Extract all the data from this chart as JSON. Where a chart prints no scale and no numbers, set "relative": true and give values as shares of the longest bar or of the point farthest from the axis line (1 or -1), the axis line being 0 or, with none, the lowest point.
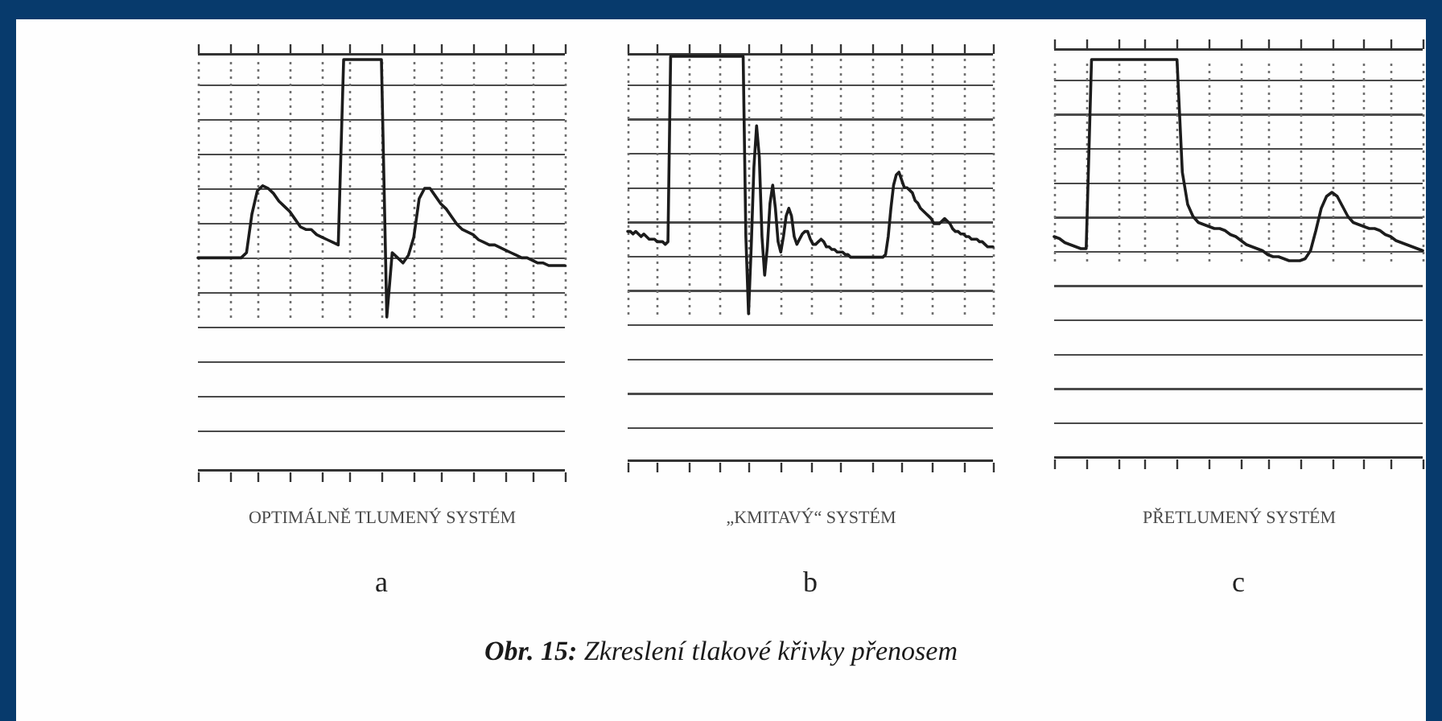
{
  "chart_data": [
    {
      "type": "line",
      "relative": true,
      "title": "a",
      "xlabel": "OPTIMÁLNĚ TLUMENÝ SYSTÉM",
      "color": "#1c1c1c",
      "grid": true,
      "categories": [
        null,
        null,
        null,
        null,
        null,
        null,
        null,
        null,
        null,
        null,
        null,
        null,
        null,
        null,
        null,
        null,
        null,
        null,
        null,
        null,
        null,
        null,
        null,
        null,
        null,
        null,
        null,
        null,
        null,
        null,
        null,
        null,
        null,
        null,
        null,
        null,
        null,
        null,
        null,
        null,
        null,
        null,
        null,
        null,
        null,
        null,
        null,
        null,
        null,
        null,
        null,
        null,
        null,
        null,
        null,
        null,
        null,
        null,
        null,
        null,
        null,
        null,
        null,
        null,
        null,
        null,
        null,
        null,
        null
      ],
      "values": [
        0.23,
        0.23,
        0.23,
        0.23,
        0.23,
        0.23,
        0.23,
        0.23,
        0.23,
        0.25,
        0.4,
        0.49,
        0.51,
        0.5,
        0.48,
        0.45,
        0.43,
        0.41,
        0.38,
        0.35,
        0.34,
        0.34,
        0.32,
        0.31,
        0.3,
        0.29,
        0.28,
        1,
        1,
        1,
        1,
        1,
        1,
        1,
        1,
        0,
        0.25,
        0.23,
        0.21,
        0.24,
        0.31,
        0.46,
        0.5,
        0.5,
        0.47,
        0.44,
        0.42,
        0.39,
        0.36,
        0.34,
        0.33,
        0.32,
        0.3,
        0.29,
        0.28,
        0.28,
        0.27,
        0.26,
        0.25,
        0.24,
        0.23,
        0.23,
        0.22,
        0.21,
        0.21,
        0.2,
        0.2,
        0.2,
        0.2
      ]
    },
    {
      "type": "line",
      "relative": true,
      "title": "b",
      "xlabel": "„KMITAVÝ“ SYSTÉM",
      "color": "#1c1c1c",
      "grid": true,
      "annotations": [
        "Obr. 15: Zkreslení tlakové křivky přenosem"
      ],
      "categories": [
        null,
        null,
        null,
        null,
        null,
        null,
        null,
        null,
        null,
        null,
        null,
        null,
        null,
        null,
        null,
        null,
        null,
        null,
        null,
        null,
        null,
        null,
        null,
        null,
        null,
        null,
        null,
        null,
        null,
        null,
        null,
        null,
        null,
        null,
        null,
        null,
        null,
        null,
        null,
        null,
        null,
        null,
        null,
        null,
        null,
        null,
        null,
        null,
        null,
        null,
        null,
        null,
        null,
        null,
        null,
        null,
        null,
        null,
        null,
        null,
        null,
        null,
        null,
        null,
        null,
        null,
        null,
        null,
        null,
        null,
        null,
        null,
        null,
        null,
        null,
        null,
        null,
        null,
        null,
        null,
        null,
        null,
        null,
        null,
        null,
        null,
        null,
        null,
        null,
        null,
        null,
        null,
        null,
        null,
        null,
        null,
        null,
        null,
        null,
        null,
        null,
        null,
        null,
        null,
        null,
        null,
        null,
        null,
        null,
        null,
        null,
        null,
        null,
        null,
        null,
        null,
        null,
        null,
        null,
        null,
        null,
        null,
        null,
        null,
        null,
        null,
        null,
        null,
        null,
        null,
        null,
        null,
        null,
        null,
        null,
        null,
        null
      ],
      "values": [
        0.32,
        0.32,
        0.31,
        0.32,
        0.31,
        0.3,
        0.31,
        0.3,
        0.29,
        0.29,
        0.29,
        0.28,
        0.28,
        0.28,
        0.27,
        0.28,
        1,
        1,
        1,
        1,
        1,
        1,
        1,
        1,
        1,
        1,
        1,
        1,
        1,
        1,
        1,
        1,
        1,
        1,
        1,
        1,
        1,
        1,
        1,
        1,
        1,
        1,
        1,
        1,
        0.3,
        0,
        0.26,
        0.57,
        0.73,
        0.61,
        0.3,
        0.15,
        0.26,
        0.43,
        0.5,
        0.41,
        0.28,
        0.24,
        0.3,
        0.38,
        0.41,
        0.38,
        0.3,
        0.27,
        0.29,
        0.31,
        0.32,
        0.32,
        0.29,
        0.27,
        0.27,
        0.28,
        0.29,
        0.28,
        0.26,
        0.26,
        0.25,
        0.25,
        0.24,
        0.24,
        0.24,
        0.23,
        0.23,
        0.22,
        0.22,
        0.22,
        0.22,
        0.22,
        0.22,
        0.22,
        0.22,
        0.22,
        0.22,
        0.22,
        0.22,
        0.22,
        0.23,
        0.3,
        0.41,
        0.5,
        0.54,
        0.55,
        0.52,
        0.49,
        0.49,
        0.48,
        0.47,
        0.44,
        0.43,
        0.41,
        0.4,
        0.39,
        0.38,
        0.37,
        0.35,
        0.35,
        0.35,
        0.36,
        0.37,
        0.36,
        0.35,
        0.33,
        0.32,
        0.32,
        0.31,
        0.31,
        0.3,
        0.3,
        0.29,
        0.29,
        0.29,
        0.28,
        0.28,
        0.27,
        0.26,
        0.26,
        0.26
      ]
    },
    {
      "type": "line",
      "relative": true,
      "title": "c",
      "xlabel": "PŘETLUMENÝ SYSTÉM",
      "color": "#1c1c1c",
      "grid": true,
      "categories": [
        null,
        null,
        null,
        null,
        null,
        null,
        null,
        null,
        null,
        null,
        null,
        null,
        null,
        null,
        null,
        null,
        null,
        null,
        null,
        null,
        null,
        null,
        null,
        null,
        null,
        null,
        null,
        null,
        null,
        null,
        null,
        null,
        null,
        null,
        null,
        null,
        null,
        null,
        null,
        null,
        null,
        null,
        null,
        null,
        null,
        null,
        null,
        null,
        null,
        null,
        null,
        null,
        null,
        null,
        null,
        null,
        null,
        null,
        null,
        null,
        null,
        null,
        null,
        null,
        null,
        null,
        null,
        null,
        null,
        null
      ],
      "values": [
        0.12,
        0.11,
        0.09,
        0.08,
        0.07,
        0.06,
        0.06,
        1,
        1,
        1,
        1,
        1,
        1,
        1,
        1,
        1,
        1,
        1,
        1,
        1,
        1,
        1,
        1,
        1,
        0.44,
        0.28,
        0.22,
        0.19,
        0.18,
        0.17,
        0.16,
        0.16,
        0.15,
        0.13,
        0.12,
        0.1,
        0.08,
        0.07,
        0.06,
        0.05,
        0.03,
        0.02,
        0.02,
        0.01,
        0,
        0,
        0,
        0.01,
        0.05,
        0.15,
        0.26,
        0.32,
        0.34,
        0.32,
        0.27,
        0.22,
        0.19,
        0.18,
        0.17,
        0.16,
        0.16,
        0.15,
        0.13,
        0.12,
        0.1,
        0.09,
        0.08,
        0.07,
        0.06,
        0.05
      ]
    }
  ]
}
